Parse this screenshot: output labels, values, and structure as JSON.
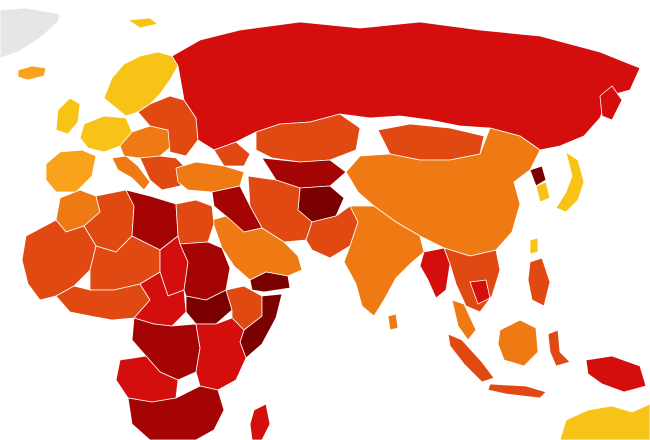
{
  "map": {
    "palette": {
      "very_clean": "#f7c317",
      "clean": "#f9a21b",
      "moderate": "#ef7a14",
      "corrupt": "#e04a12",
      "very_corrupt": "#d40d0d",
      "highly_corrupt": "#a40404",
      "severe": "#7b0000",
      "no_data": "#e6e6e6"
    },
    "regions": [
      {
        "name": "greenland",
        "level": "no_data"
      },
      {
        "name": "iceland",
        "level": "clean"
      },
      {
        "name": "scandinavia",
        "level": "very_clean"
      },
      {
        "name": "western-europe",
        "level": "very_clean"
      },
      {
        "name": "iberia",
        "level": "clean"
      },
      {
        "name": "central-europe",
        "level": "moderate"
      },
      {
        "name": "eastern-europe",
        "level": "corrupt"
      },
      {
        "name": "balkans",
        "level": "corrupt"
      },
      {
        "name": "italy",
        "level": "moderate"
      },
      {
        "name": "russia",
        "level": "very_corrupt"
      },
      {
        "name": "turkey",
        "level": "moderate"
      },
      {
        "name": "caucasus",
        "level": "corrupt"
      },
      {
        "name": "kazakhstan",
        "level": "corrupt"
      },
      {
        "name": "central-asia",
        "level": "highly_corrupt"
      },
      {
        "name": "afghanistan",
        "level": "severe"
      },
      {
        "name": "iran",
        "level": "corrupt"
      },
      {
        "name": "iraq-syria",
        "level": "highly_corrupt"
      },
      {
        "name": "arabian-peninsula",
        "level": "moderate"
      },
      {
        "name": "yemen",
        "level": "severe"
      },
      {
        "name": "mongolia",
        "level": "corrupt"
      },
      {
        "name": "china",
        "level": "moderate"
      },
      {
        "name": "korea",
        "level": "very_clean"
      },
      {
        "name": "north-korea",
        "level": "severe"
      },
      {
        "name": "japan",
        "level": "very_clean"
      },
      {
        "name": "india",
        "level": "moderate"
      },
      {
        "name": "pakistan",
        "level": "corrupt"
      },
      {
        "name": "southeast-asia",
        "level": "corrupt"
      },
      {
        "name": "myanmar-cambodia",
        "level": "very_corrupt"
      },
      {
        "name": "malaysia",
        "level": "moderate"
      },
      {
        "name": "indonesia",
        "level": "corrupt"
      },
      {
        "name": "philippines",
        "level": "corrupt"
      },
      {
        "name": "papua-new-guinea",
        "level": "very_corrupt"
      },
      {
        "name": "australia",
        "level": "very_clean"
      },
      {
        "name": "morocco",
        "level": "moderate"
      },
      {
        "name": "algeria",
        "level": "corrupt"
      },
      {
        "name": "libya",
        "level": "highly_corrupt"
      },
      {
        "name": "egypt",
        "level": "corrupt"
      },
      {
        "name": "west-africa",
        "level": "corrupt"
      },
      {
        "name": "sahel",
        "level": "corrupt"
      },
      {
        "name": "chad-niger",
        "level": "very_corrupt"
      },
      {
        "name": "sudan",
        "level": "highly_corrupt"
      },
      {
        "name": "south-sudan",
        "level": "severe"
      },
      {
        "name": "ethiopia",
        "level": "corrupt"
      },
      {
        "name": "somalia",
        "level": "severe"
      },
      {
        "name": "central-africa",
        "level": "very_corrupt"
      },
      {
        "name": "drc",
        "level": "highly_corrupt"
      },
      {
        "name": "east-africa",
        "level": "very_corrupt"
      },
      {
        "name": "angola",
        "level": "very_corrupt"
      },
      {
        "name": "southern-africa",
        "level": "highly_corrupt"
      },
      {
        "name": "madagascar",
        "level": "very_corrupt"
      }
    ]
  }
}
